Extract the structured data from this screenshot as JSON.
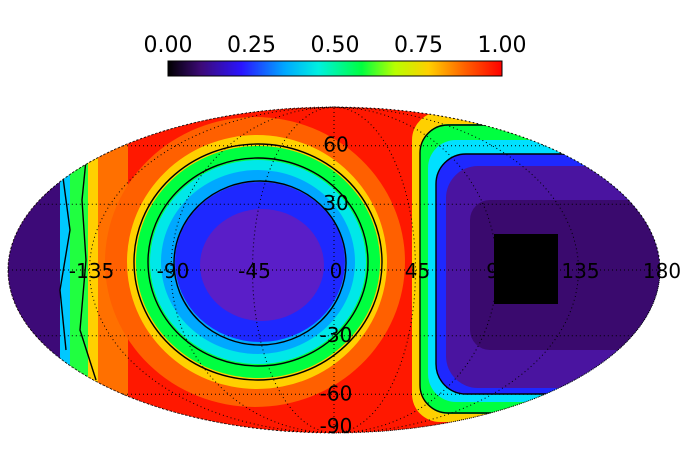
{
  "chart_data": {
    "type": "heatmap",
    "projection": "mollweide",
    "colorbar": {
      "ticks": [
        "0.00",
        "0.25",
        "0.50",
        "0.75",
        "1.00"
      ],
      "range": [
        0,
        1
      ],
      "placement": "top",
      "colormap": [
        "#000000",
        "#3d0a78",
        "#2a14ff",
        "#00a8ff",
        "#00f0e0",
        "#00ff40",
        "#b8ff00",
        "#ffd000",
        "#ff6000",
        "#ff0000"
      ]
    },
    "longitude_ticks": [
      "-135",
      "-90",
      "-45",
      "0",
      "45",
      "90",
      "135",
      "180"
    ],
    "latitude_ticks": [
      "60",
      "30",
      "0",
      "-30",
      "-60",
      "-90"
    ],
    "grid": true,
    "contour_levels": [
      0.25,
      0.5,
      0.75
    ],
    "features": [
      {
        "kind": "minimum",
        "lon": -45,
        "lat": 0,
        "value": 0.12
      },
      {
        "kind": "minimum",
        "lon": 130,
        "lat": 0,
        "value": 0.0
      },
      {
        "kind": "maximum",
        "lon": 45,
        "lat": 0,
        "value": 1.0
      },
      {
        "kind": "maximum",
        "lon": -150,
        "lat": 0,
        "value": 1.0
      }
    ]
  }
}
